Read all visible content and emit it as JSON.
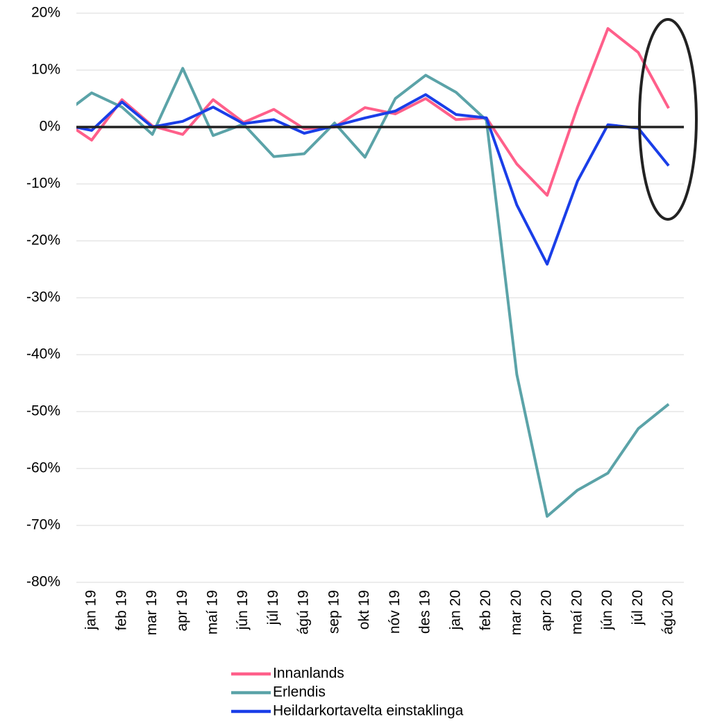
{
  "chart_data": {
    "type": "line",
    "categories": [
      null,
      "jan 19",
      "feb 19",
      "mar 19",
      "apr 19",
      "maí 19",
      "jún 19",
      "júl 19",
      "ágú 19",
      "sep 19",
      "okt 19",
      "nóv 19",
      "des 19",
      "jan 20",
      "feb 20",
      "mar 20",
      "apr 20",
      "maí 20",
      "jún 20",
      "júl 20",
      "ágú 20"
    ],
    "series": [
      {
        "name": "Innanlands",
        "color": "#ff5f8a",
        "values": [
          1.3,
          -2.3,
          4.8,
          0.2,
          -1.3,
          4.8,
          0.8,
          3.1,
          -0.3,
          0,
          3.4,
          2.3,
          5,
          1.3,
          1.6,
          -6.5,
          -12,
          3.5,
          17.3,
          13.1,
          3.3
        ]
      },
      {
        "name": "Erlendis",
        "color": "#5ba3a8",
        "values": [
          2,
          6,
          3.5,
          -1.3,
          10.3,
          -1.5,
          0.5,
          -5.2,
          -4.7,
          0.7,
          -5.3,
          5,
          9.1,
          6.1,
          1.2,
          -43.5,
          -68.4,
          -63.8,
          -60.8,
          -53,
          -48.7
        ]
      },
      {
        "name": "Heildarkortavelta einstaklinga",
        "color": "#1a3ee8",
        "values": [
          0.5,
          -0.6,
          4.4,
          0,
          1,
          3.5,
          0.6,
          1.3,
          -1.1,
          0.2,
          1.6,
          2.8,
          5.7,
          2.2,
          1.6,
          -13.7,
          -24.1,
          -9.5,
          0.4,
          -0.2,
          -6.8
        ]
      }
    ],
    "ylim": [
      -80,
      20
    ],
    "yticks": [
      {
        "value": -80,
        "label": "-80%"
      },
      {
        "value": -70,
        "label": "-70%"
      },
      {
        "value": -60,
        "label": "-60%"
      },
      {
        "value": -50,
        "label": "-50%"
      },
      {
        "value": -40,
        "label": "-40%"
      },
      {
        "value": -30,
        "label": "-30%"
      },
      {
        "value": -20,
        "label": "-20%"
      },
      {
        "value": -10,
        "label": "-10%"
      },
      {
        "value": 0,
        "label": "0%"
      },
      {
        "value": 10,
        "label": "10%"
      },
      {
        "value": 20,
        "label": "20%"
      }
    ],
    "grid": true
  }
}
